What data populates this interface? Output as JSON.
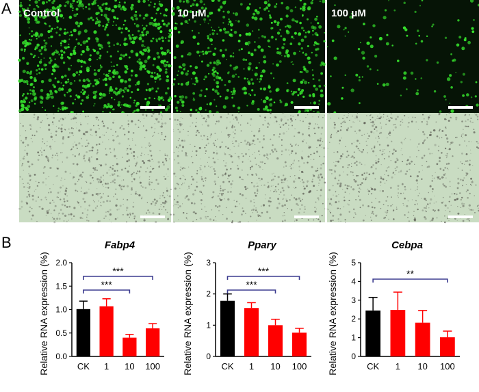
{
  "figure": {
    "panel_a": "A",
    "panel_b": "B"
  },
  "microscopy": {
    "columns": [
      {
        "label": "Control",
        "density": 0.85
      },
      {
        "label": "10 μM",
        "density": 0.55
      },
      {
        "label": "100 μM",
        "density": 0.12
      }
    ],
    "colors": {
      "fluorescence_bg": "#061406",
      "cell": "#36e02c",
      "brightfield_bg": "#c9dcc2",
      "debris": "#5a5a52",
      "scale_bar": "#ffffff"
    }
  },
  "chart_data": [
    {
      "type": "bar",
      "title": "Fabp4",
      "ylabel": "Relative RNA expression (%)",
      "categories": [
        "CK",
        "1",
        "10",
        "100"
      ],
      "values": [
        1.01,
        1.07,
        0.4,
        0.6
      ],
      "errors": [
        0.17,
        0.16,
        0.07,
        0.1
      ],
      "colors": [
        "#000000",
        "#ff0000",
        "#ff0000",
        "#ff0000"
      ],
      "ylim": [
        0,
        2.0
      ],
      "yticks": [
        "0.0",
        "0.5",
        "1.0",
        "1.5",
        "2.0"
      ],
      "significance": [
        {
          "from": "CK",
          "to": "10",
          "label": "***"
        },
        {
          "from": "CK",
          "to": "100",
          "label": "***"
        }
      ]
    },
    {
      "type": "bar",
      "title": "Ppary",
      "ylabel": "Relative RNA expression (%)",
      "categories": [
        "CK",
        "1",
        "10",
        "100"
      ],
      "values": [
        1.78,
        1.55,
        1.0,
        0.76
      ],
      "errors": [
        0.22,
        0.17,
        0.19,
        0.14
      ],
      "colors": [
        "#000000",
        "#ff0000",
        "#ff0000",
        "#ff0000"
      ],
      "ylim": [
        0,
        3
      ],
      "yticks": [
        "0",
        "1",
        "2",
        "3"
      ],
      "significance": [
        {
          "from": "CK",
          "to": "10",
          "label": "***"
        },
        {
          "from": "CK",
          "to": "100",
          "label": "***"
        }
      ]
    },
    {
      "type": "bar",
      "title": "Cebpa",
      "ylabel": "Relative RNA expression (%)",
      "categories": [
        "CK",
        "1",
        "10",
        "100"
      ],
      "values": [
        2.45,
        2.48,
        1.8,
        1.02
      ],
      "errors": [
        0.7,
        0.95,
        0.65,
        0.33
      ],
      "colors": [
        "#000000",
        "#ff0000",
        "#ff0000",
        "#ff0000"
      ],
      "ylim": [
        0,
        5
      ],
      "yticks": [
        "0",
        "1",
        "2",
        "3",
        "4",
        "5"
      ],
      "significance": [
        {
          "from": "CK",
          "to": "100",
          "label": "**"
        }
      ]
    }
  ]
}
